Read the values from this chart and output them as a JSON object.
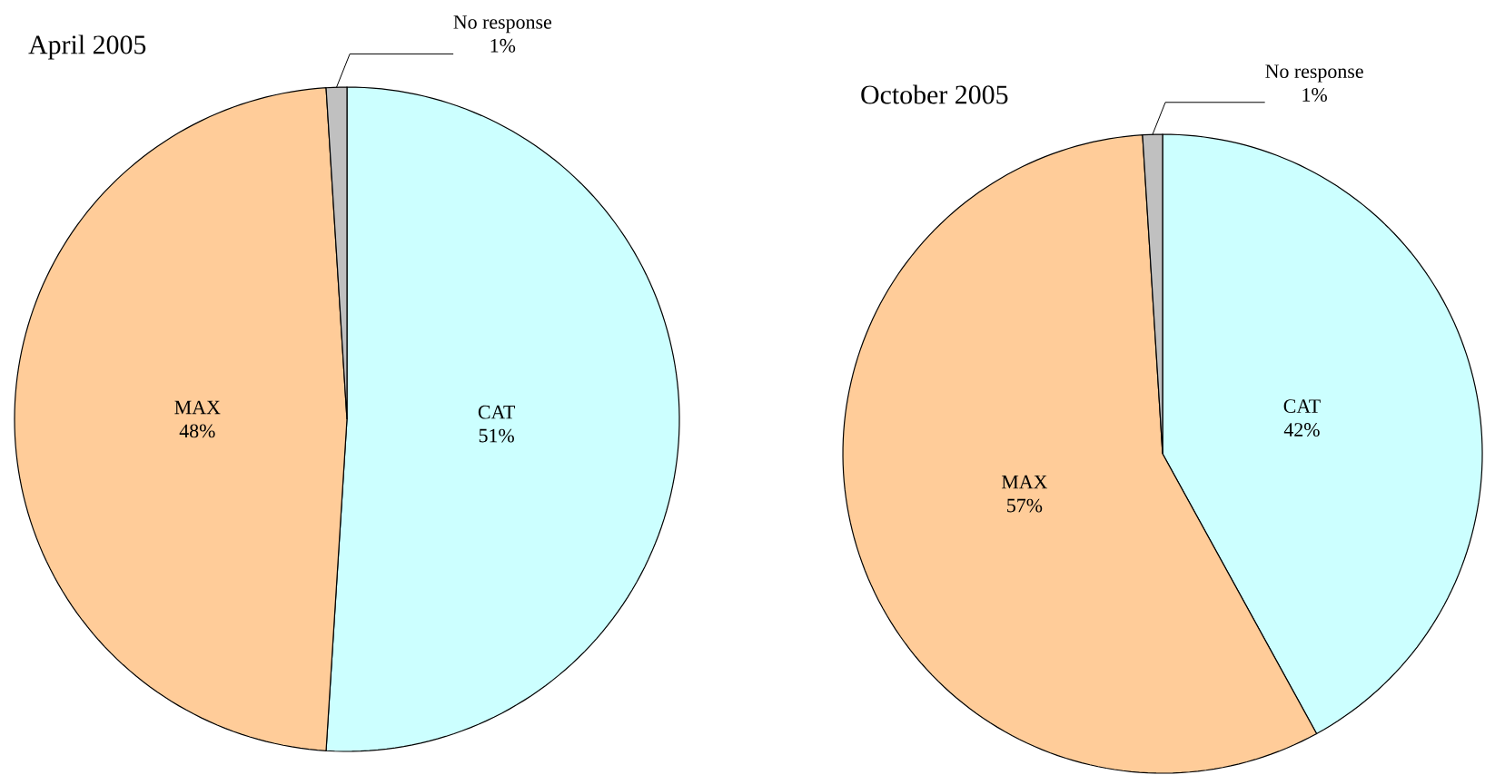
{
  "chart_data": [
    {
      "type": "pie",
      "title": "April 2005",
      "categories": [
        "CAT",
        "MAX",
        "No response"
      ],
      "values": [
        51,
        48,
        1
      ],
      "colors": [
        "#ccffff",
        "#ffcc99",
        "#c0c0c0"
      ],
      "value_labels": [
        "51%",
        "48%",
        "1%"
      ]
    },
    {
      "type": "pie",
      "title": "October 2005",
      "categories": [
        "CAT",
        "MAX",
        "No response"
      ],
      "values": [
        42,
        57,
        1
      ],
      "colors": [
        "#ccffff",
        "#ffcc99",
        "#c0c0c0"
      ],
      "value_labels": [
        "42%",
        "57%",
        "1%"
      ]
    }
  ]
}
